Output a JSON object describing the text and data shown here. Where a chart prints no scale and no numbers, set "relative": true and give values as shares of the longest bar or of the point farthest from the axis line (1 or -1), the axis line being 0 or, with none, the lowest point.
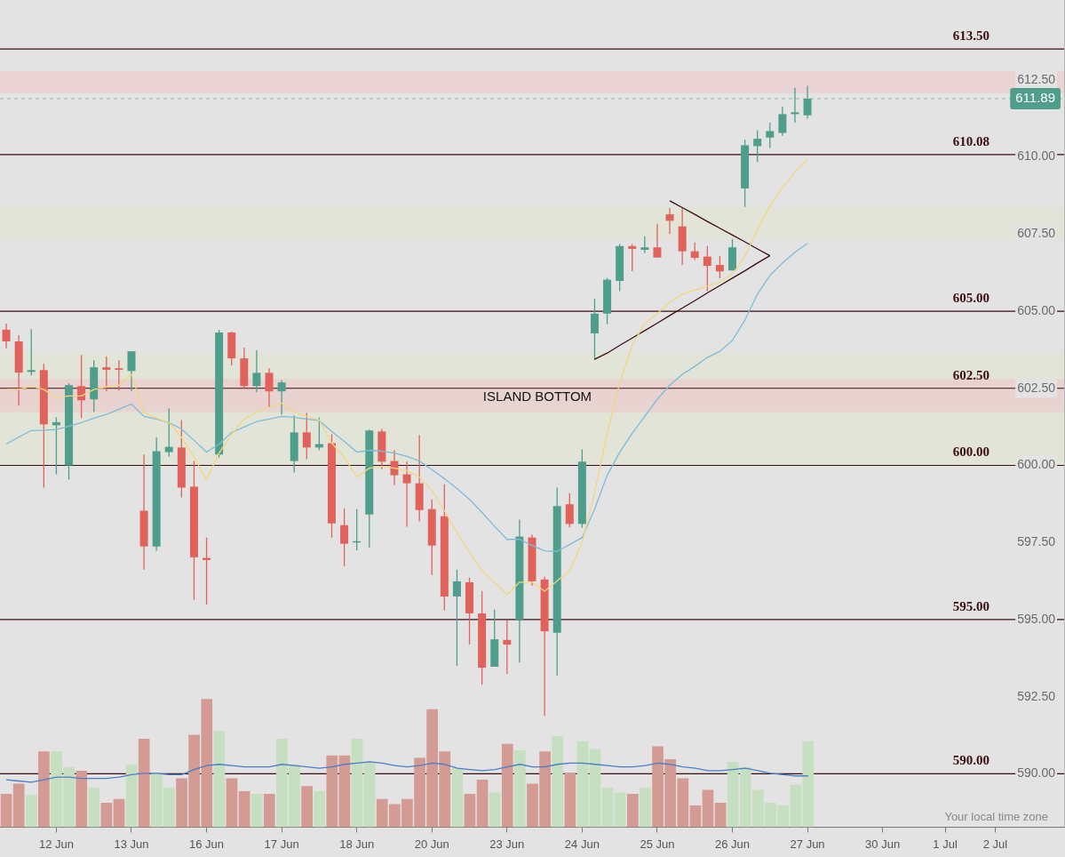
{
  "chart_data": [
    {
      "type": "candlestick",
      "categories": [
        null,
        null,
        null,
        null,
        "12 Jun",
        null,
        null,
        null,
        null,
        null,
        "13 Jun",
        null,
        null,
        null,
        null,
        null,
        "16 Jun",
        null,
        null,
        null,
        null,
        null,
        "17 Jun",
        null,
        null,
        null,
        null,
        null,
        "18 Jun",
        null,
        null,
        null,
        null,
        null,
        "20 Jun",
        null,
        null,
        null,
        null,
        null,
        "23 Jun",
        null,
        null,
        null,
        null,
        null,
        "24 Jun",
        null,
        null,
        null,
        null,
        null,
        "25 Jun",
        null,
        null,
        null,
        null,
        null,
        "26 Jun",
        null,
        null,
        null,
        null,
        null,
        "27 Jun",
        null,
        null,
        null,
        null,
        null,
        "30 Jun",
        null,
        null,
        null,
        null,
        "1 Jul",
        null,
        null,
        null,
        "2 Jul",
        null,
        null,
        null,
        null,
        null
      ],
      "ohlc": [
        [
          604.4,
          604.6,
          603.8,
          604.02
        ],
        [
          604.02,
          604.22,
          601.94,
          603.01
        ],
        [
          603.03,
          604.42,
          602.92,
          603.09
        ],
        [
          603.09,
          603.29,
          599.28,
          601.33
        ],
        [
          601.3,
          601.56,
          599.71,
          601.4
        ],
        [
          600.0,
          602.66,
          599.54,
          602.6
        ],
        [
          602.57,
          603.58,
          601.53,
          602.11
        ],
        [
          602.14,
          603.41,
          601.73,
          603.18
        ],
        [
          603.18,
          603.53,
          602.4,
          603.1
        ],
        [
          603.15,
          603.41,
          602.43,
          603.1
        ],
        [
          603.06,
          603.7,
          602.4,
          603.7
        ],
        [
          598.53,
          600.35,
          596.62,
          597.37
        ],
        [
          597.37,
          600.9,
          597.23,
          600.46
        ],
        [
          600.43,
          601.85,
          600.29,
          600.6
        ],
        [
          600.58,
          601.47,
          598.96,
          599.28
        ],
        [
          599.31,
          600.14,
          595.64,
          597.02
        ],
        [
          597.0,
          597.66,
          595.49,
          596.93
        ],
        [
          600.35,
          604.39,
          600.26,
          604.31
        ],
        [
          604.31,
          604.34,
          603.24,
          603.47
        ],
        [
          603.47,
          603.82,
          602.51,
          602.57
        ],
        [
          602.57,
          603.73,
          602.37,
          603.0
        ],
        [
          603.0,
          603.15,
          601.88,
          602.4
        ],
        [
          602.4,
          602.77,
          601.65,
          602.69
        ],
        [
          600.14,
          601.62,
          599.77,
          601.07
        ],
        [
          601.07,
          601.71,
          600.2,
          600.58
        ],
        [
          600.58,
          601.56,
          600.49,
          600.69
        ],
        [
          600.72,
          601.01,
          597.66,
          598.12
        ],
        [
          598.06,
          598.61,
          596.73,
          597.46
        ],
        [
          597.5,
          598.58,
          597.25,
          597.54
        ],
        [
          598.41,
          601.16,
          597.34,
          601.13
        ],
        [
          601.1,
          601.18,
          599.88,
          600.12
        ],
        [
          600.14,
          600.49,
          599.36,
          599.68
        ],
        [
          599.71,
          600.12,
          598.01,
          599.42
        ],
        [
          599.42,
          600.98,
          598.18,
          598.55
        ],
        [
          598.58,
          598.9,
          596.45,
          597.4
        ],
        [
          598.35,
          599.39,
          595.29,
          595.75
        ],
        [
          595.75,
          596.62,
          593.5,
          596.24
        ],
        [
          596.21,
          596.36,
          594.19,
          595.2
        ],
        [
          595.2,
          595.92,
          592.89,
          593.44
        ],
        [
          593.47,
          595.32,
          593.47,
          594.36
        ],
        [
          594.34,
          594.97,
          593.24,
          594.19
        ],
        [
          595.0,
          598.24,
          593.61,
          597.69
        ],
        [
          597.66,
          597.75,
          596.1,
          596.24
        ],
        [
          596.3,
          596.39,
          591.88,
          594.62
        ],
        [
          594.57,
          599.28,
          593.18,
          598.68
        ],
        [
          598.74,
          599.1,
          597.99,
          598.1
        ],
        [
          598.1,
          600.52,
          597.98,
          600.12
        ],
        [
          604.28,
          605.4,
          603.42,
          604.92
        ],
        [
          604.92,
          606.08,
          604.58,
          606.02
        ],
        [
          605.98,
          607.18,
          605.65,
          607.11
        ],
        [
          607.11,
          607.18,
          606.3,
          607.02
        ],
        [
          606.99,
          607.43,
          606.88,
          607.07
        ],
        [
          607.07,
          607.83,
          606.74,
          606.74
        ],
        [
          608.14,
          608.34,
          607.5,
          607.93
        ],
        [
          607.75,
          608.34,
          606.5,
          606.94
        ],
        [
          606.94,
          607.23,
          606.66,
          606.73
        ],
        [
          606.77,
          607.11,
          605.65,
          606.47
        ],
        [
          606.5,
          606.79,
          606.07,
          606.29
        ],
        [
          606.32,
          607.34,
          606.32,
          607.07
        ],
        [
          608.98,
          610.56,
          608.38,
          610.38
        ],
        [
          610.35,
          610.87,
          609.84,
          610.59
        ],
        [
          610.63,
          611.11,
          610.29,
          610.84
        ],
        [
          610.78,
          611.63,
          610.69,
          611.39
        ],
        [
          611.39,
          612.24,
          611.11,
          611.45
        ],
        [
          611.35,
          612.31,
          611.24,
          611.89
        ],
        null,
        null,
        null,
        null,
        null,
        null,
        null,
        null,
        null,
        null,
        null,
        null,
        null,
        null,
        null,
        null,
        null,
        null,
        null,
        null
      ],
      "colors": [
        "#e0625a",
        "#e0625a",
        "#4f9e8c",
        "#e0625a",
        "#4f9e8c",
        "#4f9e8c",
        "#e0625a",
        "#4f9e8c",
        "#e0625a",
        "#e0625a",
        "#4f9e8c",
        "#e0625a",
        "#4f9e8c",
        "#4f9e8c",
        "#e0625a",
        "#e0625a",
        "#e0625a",
        "#4f9e8c",
        "#e0625a",
        "#e0625a",
        "#4f9e8c",
        "#e0625a",
        "#4f9e8c",
        "#4f9e8c",
        "#e0625a",
        "#4f9e8c",
        "#e0625a",
        "#e0625a",
        "#4f9e8c",
        "#4f9e8c",
        "#e0625a",
        "#e0625a",
        "#e0625a",
        "#e0625a",
        "#e0625a",
        "#e0625a",
        "#4f9e8c",
        "#e0625a",
        "#e0625a",
        "#4f9e8c",
        "#e0625a",
        "#4f9e8c",
        "#e0625a",
        "#e0625a",
        "#4f9e8c",
        "#e0625a",
        "#4f9e8c",
        "#4f9e8c",
        "#4f9e8c",
        "#4f9e8c",
        "#e0625a",
        "#4f9e8c",
        "#e0625a",
        "#e0625a",
        "#e0625a",
        "#e0625a",
        "#e0625a",
        "#e0625a",
        "#4f9e8c",
        "#4f9e8c",
        "#4f9e8c",
        "#4f9e8c",
        "#4f9e8c",
        "#4f9e8c",
        "#4f9e8c",
        null,
        null,
        null,
        null,
        null,
        null,
        null,
        null,
        null,
        null,
        null,
        null,
        null,
        null,
        null,
        null,
        null,
        null,
        null,
        null
      ],
      "series": [
        {
          "type": "line",
          "color": "#f2d77e",
          "values": [
            602.46,
            602.46,
            602.57,
            602.46,
            602.2,
            602.25,
            602.25,
            602.46,
            602.54,
            602.6,
            602.95,
            601.71,
            601.53,
            601.39,
            600.92,
            600.26,
            599.54,
            600.4,
            601.01,
            601.5,
            601.73,
            601.88,
            602.02,
            601.73,
            601.59,
            601.47,
            600.72,
            600.26,
            599.62,
            599.91,
            599.97,
            599.91,
            599.83,
            599.62,
            599.19,
            598.53,
            597.83,
            597.17,
            596.59,
            596.21,
            595.81,
            596.21,
            596.21,
            595.92,
            596.25,
            596.59,
            597.49,
            599.13,
            601.04,
            602.67,
            603.9,
            604.6,
            604.92,
            605.29,
            605.55,
            605.68,
            605.81,
            605.95,
            606.21,
            606.76,
            607.66,
            608.41,
            609.02,
            609.51,
            609.91,
            null,
            null,
            null,
            null,
            null,
            null,
            null,
            null,
            null,
            null,
            null,
            null,
            null,
            null,
            null,
            null,
            null,
            null,
            null,
            null
          ]
        },
        {
          "type": "line",
          "color": "#7fbbd8",
          "values": [
            600.69,
            600.92,
            601.13,
            601.14,
            601.16,
            601.27,
            601.39,
            601.53,
            601.65,
            601.82,
            601.99,
            601.59,
            601.5,
            601.39,
            601.18,
            600.81,
            600.43,
            600.69,
            601.07,
            601.24,
            601.42,
            601.5,
            601.59,
            601.56,
            601.5,
            601.45,
            601.1,
            600.78,
            600.43,
            600.49,
            600.46,
            600.4,
            600.29,
            600.14,
            599.86,
            599.57,
            599.25,
            598.9,
            598.47,
            598.03,
            597.6,
            597.6,
            597.4,
            597.23,
            597.21,
            597.43,
            597.66,
            598.58,
            599.68,
            600.42,
            601.04,
            601.59,
            602.14,
            602.6,
            602.95,
            603.21,
            603.5,
            603.7,
            604.05,
            604.71,
            605.55,
            606.16,
            606.56,
            606.91,
            607.2,
            null,
            null,
            null,
            null,
            null,
            null,
            null,
            null,
            null,
            null,
            null,
            null,
            null,
            null,
            null,
            null,
            null,
            null,
            null,
            null
          ]
        },
        {
          "type": "line",
          "color": "#3a0f12",
          "values": [
            null,
            null,
            null,
            null,
            null,
            null,
            null,
            null,
            null,
            null,
            null,
            null,
            null,
            null,
            null,
            null,
            null,
            null,
            null,
            null,
            null,
            null,
            null,
            null,
            null,
            null,
            null,
            null,
            null,
            null,
            null,
            null,
            null,
            null,
            null,
            null,
            null,
            null,
            null,
            null,
            null,
            null,
            null,
            null,
            null,
            null,
            null,
            603.44,
            603.64,
            603.89,
            604.13,
            604.37,
            604.61,
            604.86,
            605.1,
            605.34,
            605.59,
            605.83,
            606.07,
            606.31,
            606.56,
            606.8,
            null,
            null,
            null,
            null,
            null,
            null,
            null,
            null,
            null,
            null,
            null,
            null,
            null,
            null,
            null,
            null,
            null,
            null,
            null,
            null,
            null,
            null,
            null
          ]
        },
        {
          "type": "line",
          "color": "#3a0f12",
          "values": [
            null,
            null,
            null,
            null,
            null,
            null,
            null,
            null,
            null,
            null,
            null,
            null,
            null,
            null,
            null,
            null,
            null,
            null,
            null,
            null,
            null,
            null,
            null,
            null,
            null,
            null,
            null,
            null,
            null,
            null,
            null,
            null,
            null,
            null,
            null,
            null,
            null,
            null,
            null,
            null,
            null,
            null,
            null,
            null,
            null,
            null,
            null,
            null,
            null,
            null,
            null,
            null,
            null,
            608.58,
            608.36,
            608.14,
            607.91,
            607.69,
            607.47,
            607.25,
            607.02,
            606.8,
            null,
            null,
            null,
            null,
            null,
            null,
            null,
            null,
            null,
            null,
            null,
            null,
            null,
            null,
            null,
            null,
            null,
            null,
            null,
            null,
            null,
            null,
            null
          ]
        }
      ],
      "ylim": [
        588.27,
        615.09
      ],
      "yticks": [
        {
          "value": 590,
          "label": "590.00"
        },
        {
          "value": 592.5,
          "label": "592.50"
        },
        {
          "value": 595,
          "label": "595.00"
        },
        {
          "value": 597.5,
          "label": "597.50"
        },
        {
          "value": 600,
          "label": "600.00"
        },
        {
          "value": 602.5,
          "label": "602.50"
        },
        {
          "value": 605,
          "label": "605.00"
        },
        {
          "value": 607.5,
          "label": "607.50"
        },
        {
          "value": 610,
          "label": "610.00"
        },
        {
          "value": 612.5,
          "label": "612.50"
        }
      ],
      "ref_lines": [
        {
          "axis": "y",
          "value": 613.5,
          "label": "613.50",
          "color": "#3b0d10"
        },
        {
          "axis": "y",
          "value": 610.08,
          "label": "610.08",
          "color": "#3b0d10"
        },
        {
          "axis": "y",
          "value": 605,
          "label": "605.00",
          "color": "#3b0d10"
        },
        {
          "axis": "y",
          "value": 602.5,
          "label": "602.50",
          "color": "#3b0d10"
        },
        {
          "axis": "y",
          "value": 600,
          "label": "600.00",
          "color": "#3b0d10"
        },
        {
          "axis": "y",
          "value": 595,
          "label": "595.00",
          "color": "#3b0d10"
        },
        {
          "axis": "y",
          "value": 590,
          "label": "590.00",
          "color": "#3b0d10"
        },
        {
          "axis": "y",
          "value": 611.89,
          "label": "611.89",
          "color": "#4f9e8c",
          "line_style": "dashed"
        }
      ],
      "bands": [
        {
          "axis": "y",
          "from": 612.07,
          "to": 612.79,
          "color": "#ebcdcf"
        },
        {
          "axis": "y",
          "from": 607.34,
          "to": 608.38,
          "color": "#e0e4d2"
        },
        {
          "axis": "y",
          "from": 600.0,
          "to": 603.67,
          "color": "#e0e4d2"
        },
        {
          "axis": "y",
          "from": 601.73,
          "to": 602.8,
          "label": "ISLAND BOTTOM",
          "color": "#ebcdcf"
        }
      ],
      "annotations": [
        "Your local time zone"
      ]
    },
    {
      "type": "bar",
      "relative": true,
      "categories": [
        null,
        null,
        null,
        null,
        null,
        null,
        null,
        null,
        null,
        null,
        null,
        null,
        null,
        null,
        null,
        null,
        null,
        null,
        null,
        null,
        null,
        null,
        null,
        null,
        null,
        null,
        null,
        null,
        null,
        null,
        null,
        null,
        null,
        null,
        null,
        null,
        null,
        null,
        null,
        null,
        null,
        null,
        null,
        null,
        null,
        null,
        null,
        null,
        null,
        null,
        null,
        null,
        null,
        null,
        null,
        null,
        null,
        null,
        null,
        null,
        null,
        null,
        null,
        null,
        null,
        null,
        null,
        null,
        null,
        null,
        null,
        null,
        null,
        null,
        null,
        null,
        null,
        null,
        null,
        null,
        null,
        null,
        null,
        null,
        null
      ],
      "series": [
        {
          "type": "bar",
          "colors": [
            "#d49a94",
            "#d49a94",
            "#c5dfc0",
            "#d49a94",
            "#c5dfc0",
            "#c5dfc0",
            "#d49a94",
            "#c5dfc0",
            "#d49a94",
            "#d49a94",
            "#c5dfc0",
            "#d49a94",
            "#c5dfc0",
            "#c5dfc0",
            "#d49a94",
            "#d49a94",
            "#d49a94",
            "#c5dfc0",
            "#d49a94",
            "#d49a94",
            "#c5dfc0",
            "#d49a94",
            "#c5dfc0",
            "#c5dfc0",
            "#d49a94",
            "#c5dfc0",
            "#d49a94",
            "#d49a94",
            "#c5dfc0",
            "#c5dfc0",
            "#d49a94",
            "#d49a94",
            "#d49a94",
            "#d49a94",
            "#d49a94",
            "#d49a94",
            "#c5dfc0",
            "#d49a94",
            "#d49a94",
            "#c5dfc0",
            "#d49a94",
            "#c5dfc0",
            "#d49a94",
            "#d49a94",
            "#c5dfc0",
            "#d49a94",
            "#c5dfc0",
            "#c5dfc0",
            "#c5dfc0",
            "#c5dfc0",
            "#d49a94",
            "#c5dfc0",
            "#d49a94",
            "#d49a94",
            "#d49a94",
            "#d49a94",
            "#d49a94",
            "#d49a94",
            "#c5dfc0",
            "#c5dfc0",
            "#c5dfc0",
            "#c5dfc0",
            "#c5dfc0",
            "#c5dfc0",
            "#c5dfc0",
            null,
            null,
            null,
            null,
            null,
            null,
            null,
            null,
            null,
            null,
            null,
            null,
            null,
            null,
            null,
            null,
            null,
            null,
            null,
            null
          ],
          "values": [
            0.26,
            0.34,
            0.25,
            0.59,
            0.59,
            0.47,
            0.44,
            0.31,
            0.19,
            0.22,
            0.49,
            0.69,
            0.42,
            0.31,
            0.38,
            0.72,
            1,
            0.75,
            0.38,
            0.28,
            0.26,
            0.26,
            0.69,
            0.49,
            0.32,
            0.28,
            0.56,
            0.56,
            0.69,
            0.51,
            0.22,
            0.18,
            0.22,
            0.54,
            0.92,
            0.59,
            0.46,
            0.26,
            0.37,
            0.27,
            0.65,
            0.6,
            0.34,
            0.59,
            0.71,
            0.42,
            0.67,
            0.61,
            0.31,
            0.27,
            0.26,
            0.31,
            0.63,
            0.53,
            0.38,
            0.17,
            0.29,
            0.19,
            0.51,
            0.47,
            0.29,
            0.19,
            0.17,
            0.33,
            0.67,
            null,
            null,
            null,
            null,
            null,
            null,
            null,
            null,
            null,
            null,
            null,
            null,
            null,
            null,
            null,
            null,
            null,
            null,
            null,
            null
          ]
        },
        {
          "type": "line",
          "color": "#4a7ec9",
          "values": [
            0.37,
            0.36,
            0.35,
            0.37,
            0.39,
            0.39,
            0.38,
            0.38,
            0.38,
            0.39,
            0.41,
            0.42,
            0.42,
            0.41,
            0.41,
            0.45,
            0.48,
            0.49,
            0.48,
            0.47,
            0.47,
            0.47,
            0.49,
            0.48,
            0.47,
            0.46,
            0.47,
            0.49,
            0.5,
            0.51,
            0.5,
            0.48,
            0.47,
            0.48,
            0.5,
            0.49,
            0.46,
            0.45,
            0.44,
            0.45,
            0.47,
            0.49,
            0.47,
            0.47,
            0.49,
            0.5,
            0.5,
            0.49,
            0.48,
            0.47,
            0.47,
            0.48,
            0.5,
            0.49,
            0.47,
            0.46,
            0.44,
            0.44,
            0.45,
            0.46,
            0.44,
            0.42,
            0.41,
            0.4,
            0.4,
            null,
            null,
            null,
            null,
            null,
            null,
            null,
            null,
            null,
            null,
            null,
            null,
            null,
            null,
            null,
            null,
            null,
            null,
            null,
            null
          ]
        }
      ]
    }
  ]
}
